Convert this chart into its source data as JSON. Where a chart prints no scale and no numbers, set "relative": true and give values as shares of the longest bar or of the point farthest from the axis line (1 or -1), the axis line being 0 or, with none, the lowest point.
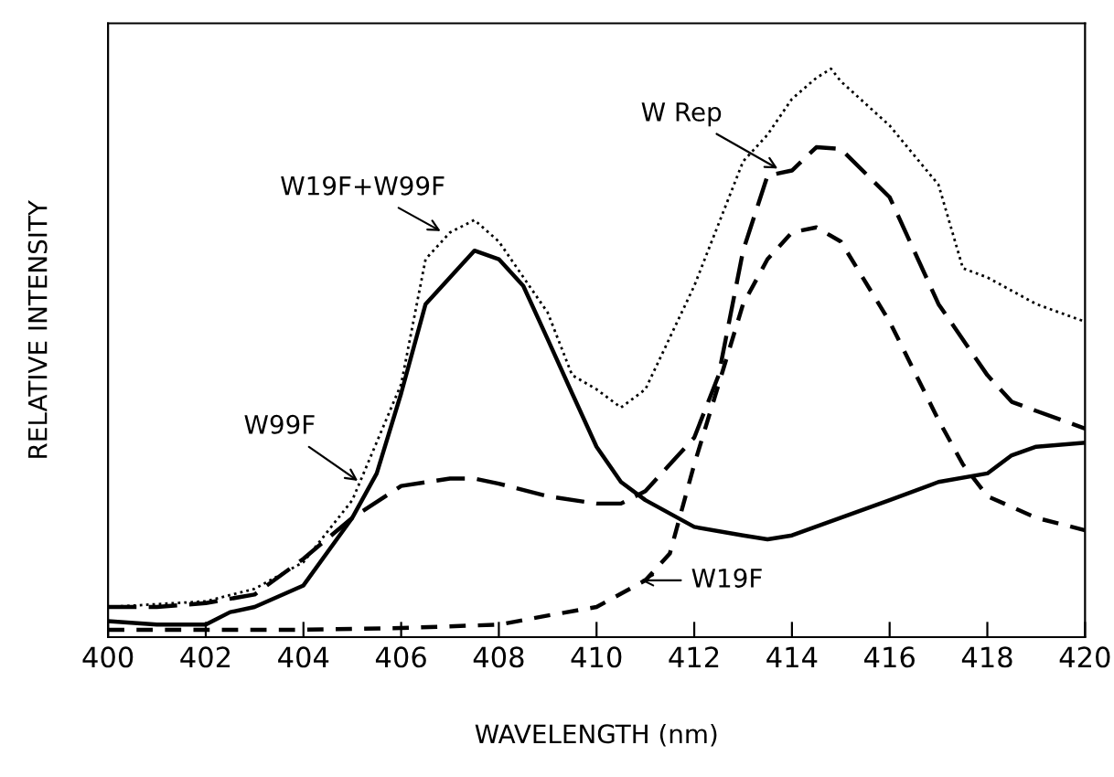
{
  "chart_data": {
    "type": "line",
    "relative": true,
    "xlabel": "WAVELENGTH (nm)",
    "ylabel": "RELATIVE INTENSITY",
    "xlim": [
      400,
      420
    ],
    "xticks": [
      400,
      402,
      404,
      406,
      408,
      410,
      412,
      414,
      416,
      418,
      420
    ],
    "tick_labels": "x",
    "grid": false,
    "marker": "none",
    "series": [
      {
        "color": "#000000",
        "line_style": "dotted",
        "x": [
          400,
          402,
          403,
          404,
          405,
          406,
          406.5,
          407,
          407.5,
          408,
          409,
          409.5,
          410,
          410.5,
          411,
          412,
          413,
          413.5,
          414,
          414.5,
          414.8,
          415,
          416,
          417,
          417.5,
          418,
          419,
          420
        ],
        "values": [
          0.053,
          0.063,
          0.085,
          0.132,
          0.241,
          0.445,
          0.665,
          0.712,
          0.734,
          0.696,
          0.571,
          0.461,
          0.436,
          0.404,
          0.436,
          0.618,
          0.837,
          0.884,
          0.947,
          0.984,
          1,
          0.978,
          0.9,
          0.796,
          0.649,
          0.633,
          0.586,
          0.555
        ]
      },
      {
        "color": "#000000",
        "line_style": "solid",
        "x": [
          400,
          401,
          402,
          402.5,
          403,
          404,
          405,
          405.5,
          406,
          406.5,
          407,
          407.5,
          408,
          408.5,
          409,
          409.5,
          410,
          410.5,
          411,
          412,
          413,
          413.5,
          414,
          415,
          416,
          417,
          418,
          418.5,
          419,
          420
        ],
        "values": [
          0.028,
          0.022,
          0.022,
          0.044,
          0.053,
          0.091,
          0.21,
          0.288,
          0.429,
          0.586,
          0.633,
          0.68,
          0.665,
          0.618,
          0.524,
          0.429,
          0.335,
          0.273,
          0.241,
          0.194,
          0.179,
          0.172,
          0.179,
          0.21,
          0.241,
          0.273,
          0.288,
          0.32,
          0.335,
          0.342
        ]
      },
      {
        "color": "#000000",
        "line_style": "dashed",
        "x": [
          400,
          401,
          402,
          403,
          404,
          405,
          406,
          407,
          407.5,
          408,
          409,
          410,
          410.5,
          411,
          412,
          412.5,
          413,
          413.5,
          414,
          414.5,
          415,
          416,
          417,
          418,
          418.5,
          419,
          420
        ],
        "values": [
          0.053,
          0.053,
          0.06,
          0.075,
          0.138,
          0.21,
          0.266,
          0.279,
          0.279,
          0.27,
          0.248,
          0.235,
          0.235,
          0.257,
          0.351,
          0.461,
          0.68,
          0.812,
          0.821,
          0.862,
          0.859,
          0.774,
          0.586,
          0.461,
          0.414,
          0.398,
          0.367
        ]
      },
      {
        "color": "#000000",
        "line_style": "short dashed",
        "x": [
          400,
          402,
          404,
          406,
          408,
          409,
          410,
          411,
          411.5,
          412,
          413,
          413.5,
          414,
          414.5,
          415,
          416,
          417,
          417.5,
          418,
          419,
          420
        ],
        "values": [
          0.013,
          0.013,
          0.013,
          0.016,
          0.022,
          0.038,
          0.053,
          0.1,
          0.147,
          0.304,
          0.586,
          0.665,
          0.712,
          0.721,
          0.696,
          0.555,
          0.382,
          0.304,
          0.248,
          0.21,
          0.188
        ]
      }
    ],
    "annotations": [
      {
        "text": "W19F+W99F",
        "x": 406.9,
        "y": 0.71
      },
      {
        "text": "W Rep",
        "x": 413.8,
        "y": 0.82
      },
      {
        "text": "W99F",
        "x": 405.2,
        "y": 0.27
      },
      {
        "text": "W19F",
        "x": 410.8,
        "y": 0.1
      }
    ]
  }
}
